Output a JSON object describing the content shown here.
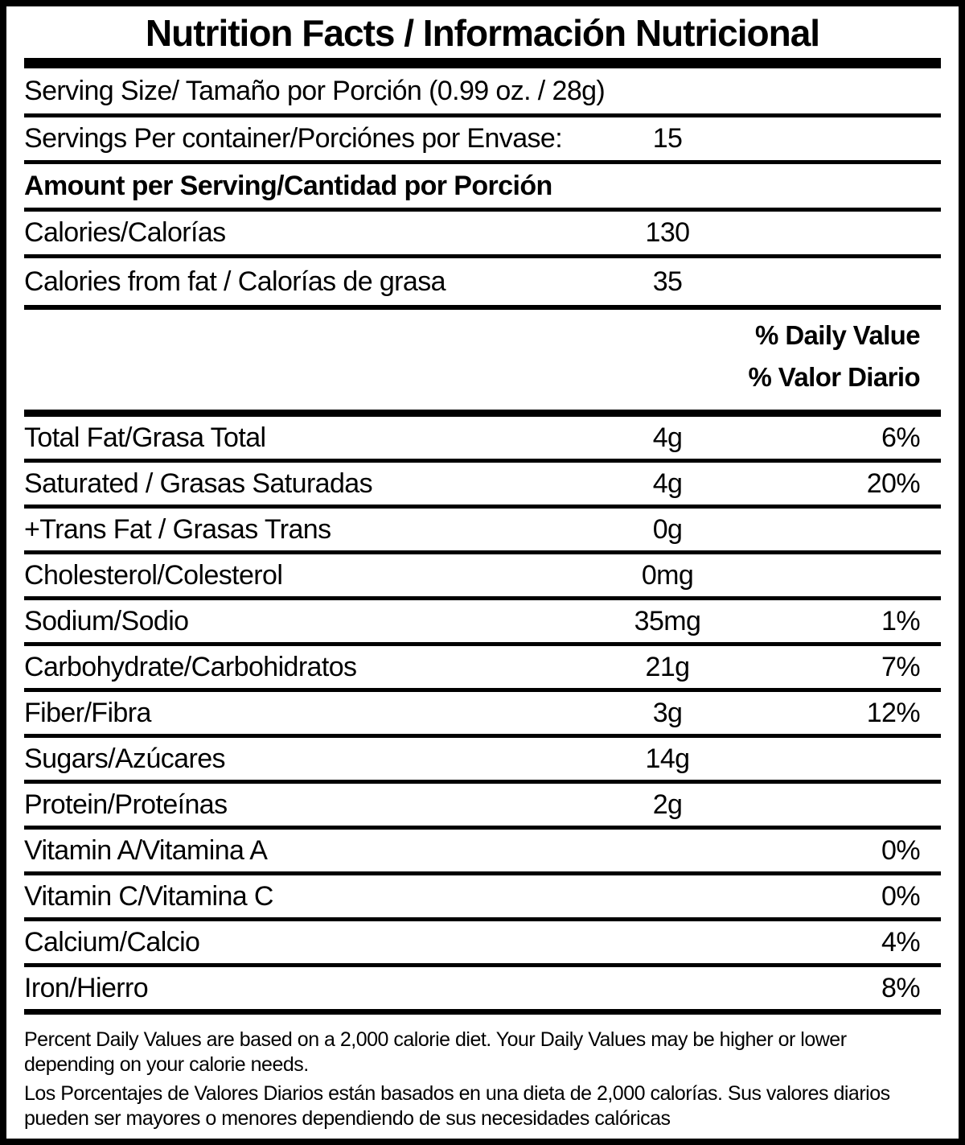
{
  "title": "Nutrition Facts / Información Nutricional",
  "serving": {
    "serving_size": "Serving Size/ Tamaño por Porción  (0.99 oz. / 28g)",
    "servings_per_container_label": "Servings Per container/Porciónes por Envase:",
    "servings_per_container_value": "15",
    "amount_per_serving": "Amount per Serving/Cantidad por Porción"
  },
  "calories": {
    "label": "Calories/Calorías",
    "value": "130"
  },
  "calories_from_fat": {
    "label": "Calories from fat / Calorías de grasa",
    "value": "35"
  },
  "daily_value_header": {
    "en": "% Daily Value",
    "es": "% Valor Diario"
  },
  "nutrients": [
    {
      "label": "Total Fat/Grasa Total",
      "amount": "4g",
      "percent": "6%"
    },
    {
      "label": "Saturated / Grasas Saturadas",
      "amount": "4g",
      "percent": "20%"
    },
    {
      "label": "+Trans Fat / Grasas Trans",
      "amount": "0g",
      "percent": ""
    },
    {
      "label": "Cholesterol/Colesterol",
      "amount": "0mg",
      "percent": ""
    },
    {
      "label": "Sodium/Sodio",
      "amount": "35mg",
      "percent": "1%"
    },
    {
      "label": "Carbohydrate/Carbohidratos",
      "amount": "21g",
      "percent": "7%"
    },
    {
      "label": "Fiber/Fibra",
      "amount": "3g",
      "percent": "12%"
    },
    {
      "label": "Sugars/Azúcares",
      "amount": "14g",
      "percent": ""
    },
    {
      "label": "Protein/Proteínas",
      "amount": "2g",
      "percent": ""
    },
    {
      "label": "Vitamin A/Vitamina A",
      "amount": "",
      "percent": "0%"
    },
    {
      "label": "Vitamin C/Vitamina C",
      "amount": "",
      "percent": "0%"
    },
    {
      "label": "Calcium/Calcio",
      "amount": "",
      "percent": "4%"
    },
    {
      "label": "Iron/Hierro",
      "amount": "",
      "percent": "8%"
    }
  ],
  "footnotes": {
    "en": "Percent Daily Values are based on a 2,000 calorie diet. Your Daily Values may be higher or lower depending on your calorie needs.",
    "es": "Los Porcentajes de Valores Diarios están basados en una dieta de 2,000 calorías. Sus valores diarios pueden ser mayores o menores dependiendo de sus necesidades calóricas"
  },
  "colors": {
    "ink": "#000000",
    "background": "#ffffff"
  }
}
